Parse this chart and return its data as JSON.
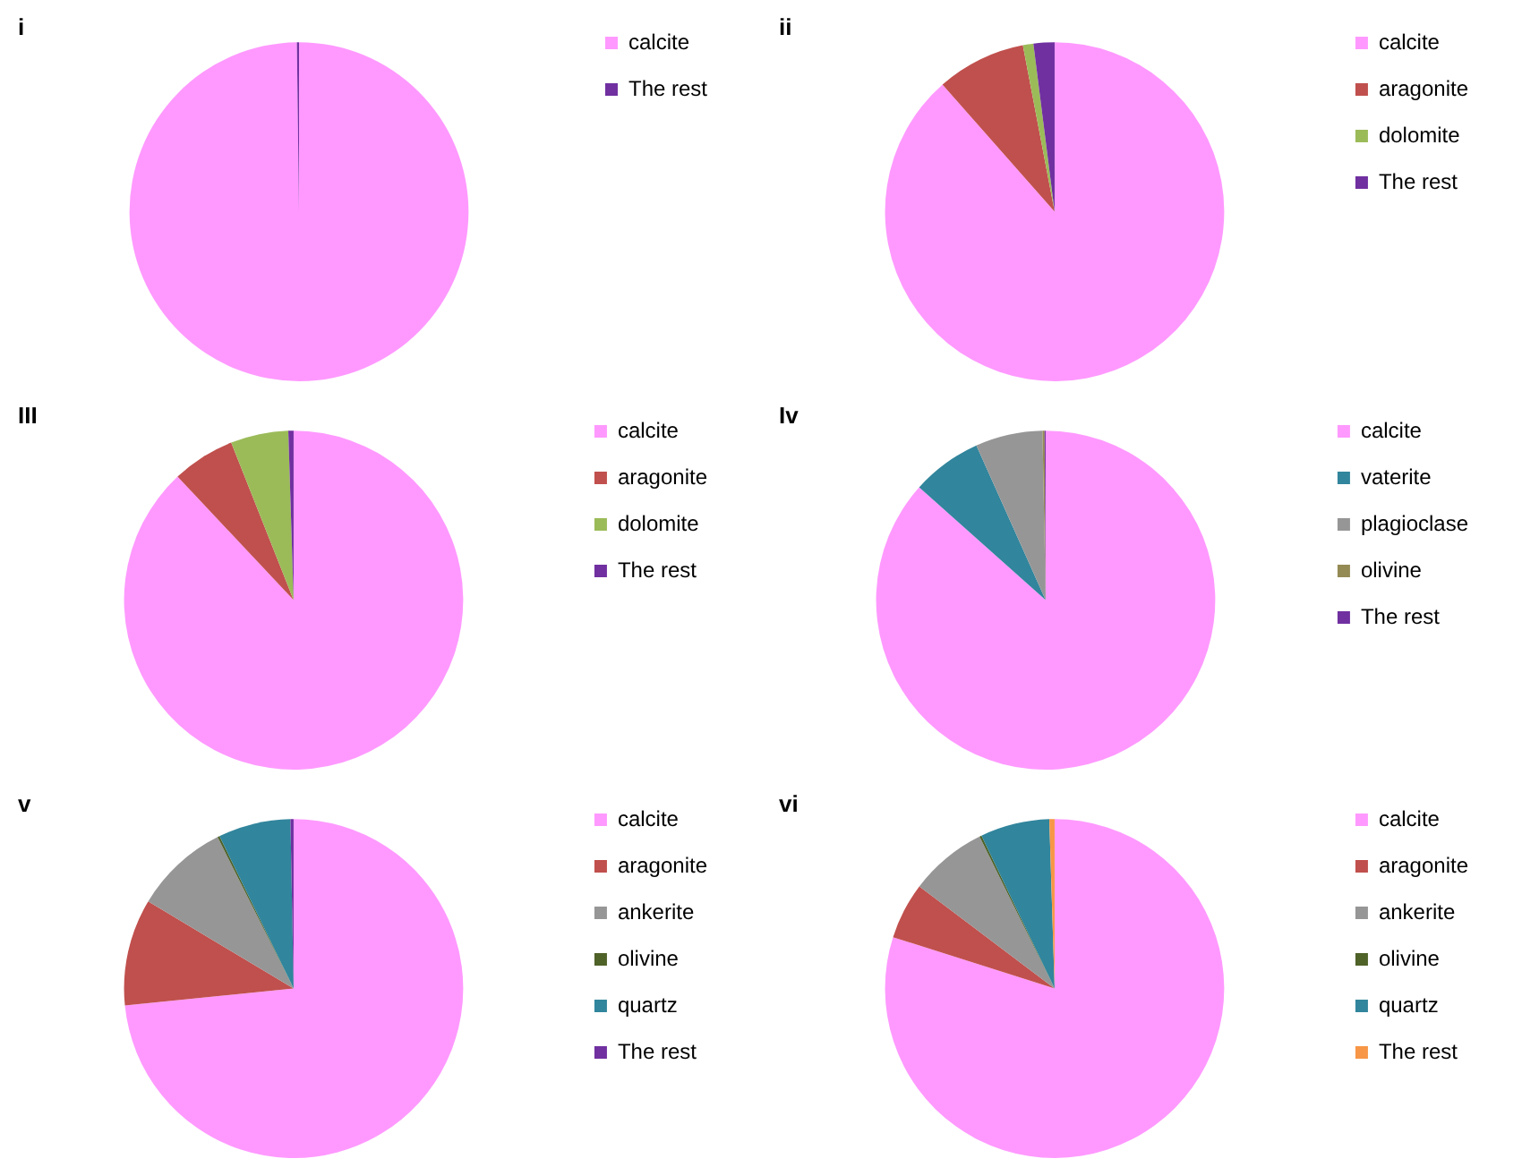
{
  "chart_data": [
    {
      "type": "pie",
      "title": "i",
      "categories": [
        "calcite",
        "The rest"
      ],
      "values": [
        99.8,
        0.2
      ],
      "colors": [
        "#ff99ff",
        "#7030a0"
      ],
      "legend": "right"
    },
    {
      "type": "pie",
      "title": "ii",
      "categories": [
        "calcite",
        "aragonite",
        "dolomite",
        "The rest"
      ],
      "values": [
        88.5,
        8.5,
        1,
        2
      ],
      "colors": [
        "#ff99ff",
        "#c0504d",
        "#9bbb59",
        "#7030a0"
      ],
      "legend": "right"
    },
    {
      "type": "pie",
      "title": "III",
      "categories": [
        "calcite",
        "aragonite",
        "dolomite",
        "The rest"
      ],
      "values": [
        88,
        6,
        5.5,
        0.5
      ],
      "colors": [
        "#ff99ff",
        "#c0504d",
        "#9bbb59",
        "#7030a0"
      ],
      "legend": "right"
    },
    {
      "type": "pie",
      "title": "Iv",
      "categories": [
        "calcite",
        "vaterite",
        "plagioclase",
        "olivine",
        "The rest"
      ],
      "values": [
        86.6,
        6.7,
        6.4,
        0.2,
        0.1
      ],
      "colors": [
        "#ff99ff",
        "#31859c",
        "#969696",
        "#948a54",
        "#7030a0"
      ],
      "legend": "right"
    },
    {
      "type": "pie",
      "title": "v",
      "categories": [
        "calcite",
        "aragonite",
        "ankerite",
        "olivine",
        "quartz",
        "The rest"
      ],
      "values": [
        73.4,
        10.2,
        9,
        0.2,
        6.9,
        0.3
      ],
      "colors": [
        "#ff99ff",
        "#c0504d",
        "#969696",
        "#4f6228",
        "#31859c",
        "#7030a0"
      ],
      "legend": "right"
    },
    {
      "type": "pie",
      "title": "vi",
      "categories": [
        "calcite",
        "aragonite",
        "ankerite",
        "olivine",
        "quartz",
        "The rest"
      ],
      "values": [
        79.9,
        5.4,
        7.4,
        0.2,
        6.6,
        0.5
      ],
      "colors": [
        "#ff99ff",
        "#c0504d",
        "#969696",
        "#4f6228",
        "#31859c",
        "#f79646"
      ],
      "legend": "right"
    }
  ]
}
